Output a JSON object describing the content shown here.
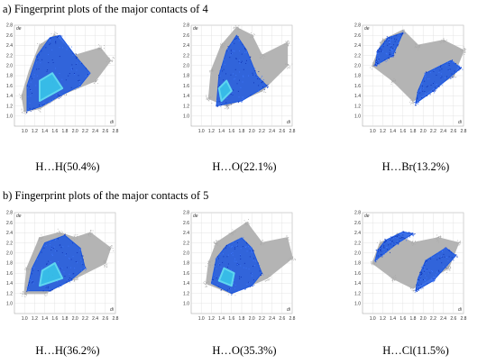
{
  "sections": [
    {
      "title": "a) Fingerprint plots of the major contacts of 4"
    },
    {
      "title": "b) Fingerprint plots of the major contacts of 5"
    }
  ],
  "chart_data": [
    {
      "type": "scatter",
      "section": "a",
      "label": "H…H(50.4%)",
      "xlabel": "di",
      "ylabel": "de",
      "xlim": [
        0.8,
        2.8
      ],
      "ylim": [
        0.8,
        2.8
      ],
      "x_ticks": [
        "1.0",
        "1.2",
        "1.4",
        "1.6",
        "1.8",
        "2.0",
        "2.2",
        "2.4",
        "2.6",
        "2.8"
      ],
      "y_ticks": [
        "1.0",
        "1.2",
        "1.4",
        "1.6",
        "1.8",
        "2.0",
        "2.2",
        "2.4",
        "2.6",
        "2.8"
      ],
      "grid": true,
      "highlight_color": "#1a56e0",
      "background_color": "#b4b4b4"
    },
    {
      "type": "scatter",
      "section": "a",
      "label": "H…O(22.1%)",
      "xlabel": "di",
      "ylabel": "de",
      "xlim": [
        0.8,
        2.8
      ],
      "ylim": [
        0.8,
        2.8
      ],
      "x_ticks": [
        "1.0",
        "1.2",
        "1.4",
        "1.6",
        "1.8",
        "2.0",
        "2.2",
        "2.4",
        "2.6",
        "2.8"
      ],
      "y_ticks": [
        "1.0",
        "1.2",
        "1.4",
        "1.6",
        "1.8",
        "2.0",
        "2.2",
        "2.4",
        "2.6",
        "2.8"
      ],
      "grid": true,
      "highlight_color": "#1a56e0",
      "background_color": "#b4b4b4"
    },
    {
      "type": "scatter",
      "section": "a",
      "label": "H…Br(13.2%)",
      "xlabel": "di",
      "ylabel": "de",
      "xlim": [
        0.8,
        2.8
      ],
      "ylim": [
        0.8,
        2.8
      ],
      "x_ticks": [
        "1.0",
        "1.2",
        "1.4",
        "1.6",
        "1.8",
        "2.0",
        "2.2",
        "2.4",
        "2.6",
        "2.8"
      ],
      "y_ticks": [
        "1.0",
        "1.2",
        "1.4",
        "1.6",
        "1.8",
        "2.0",
        "2.2",
        "2.4",
        "2.6",
        "2.8"
      ],
      "grid": true,
      "highlight_color": "#1a56e0",
      "background_color": "#b4b4b4"
    },
    {
      "type": "scatter",
      "section": "b",
      "label": "H…H(36.2%)",
      "xlabel": "di",
      "ylabel": "de",
      "xlim": [
        0.8,
        2.8
      ],
      "ylim": [
        0.8,
        2.8
      ],
      "x_ticks": [
        "1.0",
        "1.2",
        "1.4",
        "1.6",
        "1.8",
        "2.0",
        "2.2",
        "2.4",
        "2.6",
        "2.8"
      ],
      "y_ticks": [
        "1.0",
        "1.2",
        "1.4",
        "1.6",
        "1.8",
        "2.0",
        "2.2",
        "2.4",
        "2.6",
        "2.8"
      ],
      "grid": true,
      "highlight_color": "#1a56e0",
      "background_color": "#b4b4b4"
    },
    {
      "type": "scatter",
      "section": "b",
      "label": "H…O(35.3%)",
      "xlabel": "di",
      "ylabel": "de",
      "xlim": [
        0.8,
        2.8
      ],
      "ylim": [
        0.8,
        2.8
      ],
      "x_ticks": [
        "1.0",
        "1.2",
        "1.4",
        "1.6",
        "1.8",
        "2.0",
        "2.2",
        "2.4",
        "2.6",
        "2.8"
      ],
      "y_ticks": [
        "1.0",
        "1.2",
        "1.4",
        "1.6",
        "1.8",
        "2.0",
        "2.2",
        "2.4",
        "2.6",
        "2.8"
      ],
      "grid": true,
      "highlight_color": "#1a56e0",
      "background_color": "#b4b4b4"
    },
    {
      "type": "scatter",
      "section": "b",
      "label": "H…Cl(11.5%)",
      "xlabel": "di",
      "ylabel": "de",
      "xlim": [
        0.8,
        2.8
      ],
      "ylim": [
        0.8,
        2.8
      ],
      "x_ticks": [
        "1.0",
        "1.2",
        "1.4",
        "1.6",
        "1.8",
        "2.0",
        "2.2",
        "2.4",
        "2.6",
        "2.8"
      ],
      "y_ticks": [
        "1.0",
        "1.2",
        "1.4",
        "1.6",
        "1.8",
        "2.0",
        "2.2",
        "2.4",
        "2.6",
        "2.8"
      ],
      "grid": true,
      "highlight_color": "#1a56e0",
      "background_color": "#b4b4b4"
    }
  ]
}
